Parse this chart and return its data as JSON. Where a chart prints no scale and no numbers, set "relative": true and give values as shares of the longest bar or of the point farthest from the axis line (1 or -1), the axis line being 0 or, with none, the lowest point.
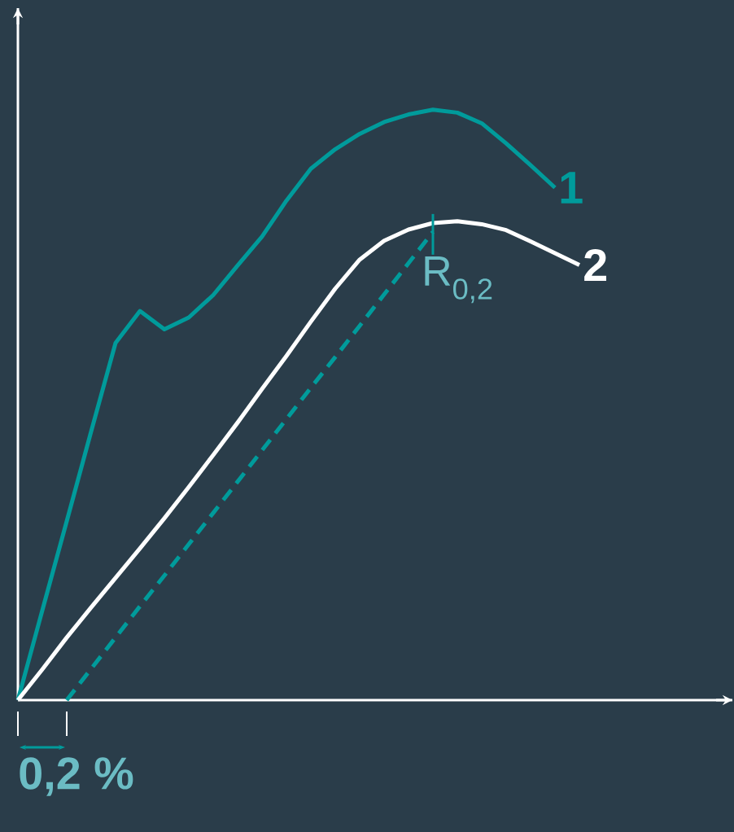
{
  "chart_data": {
    "type": "line",
    "relative": true,
    "categories": [
      null,
      null,
      null,
      null,
      null,
      null,
      null,
      null,
      null,
      null,
      null,
      null,
      null,
      null,
      null,
      null,
      null,
      null,
      null,
      null,
      null,
      null,
      null,
      null
    ],
    "series": [
      {
        "name": "1",
        "color": "#009b9b",
        "values": [
          0,
          0.152,
          0.303,
          0.455,
          0.605,
          0.659,
          0.628,
          0.648,
          0.686,
          0.736,
          0.785,
          0.846,
          0.9,
          0.933,
          0.959,
          0.979,
          0.992,
          1.0,
          0.995,
          0.977,
          0.943,
          0.906,
          0.868,
          null
        ]
      },
      {
        "name": "2",
        "color": "#ffffff",
        "values": [
          0,
          0.052,
          0.106,
          0.157,
          0.207,
          0.257,
          0.308,
          0.361,
          0.415,
          0.47,
          0.527,
          0.583,
          0.641,
          0.697,
          0.746,
          0.778,
          0.797,
          0.808,
          0.811,
          0.806,
          0.796,
          0.777,
          0.757,
          0.737
        ]
      },
      {
        "color": "#009b9b",
        "line_style": "dashed",
        "values": [
          null,
          null,
          0,
          0.053,
          0.106,
          0.159,
          0.211,
          0.264,
          0.317,
          0.37,
          0.423,
          0.476,
          0.529,
          0.581,
          0.634,
          0.687,
          0.74,
          0.793,
          null,
          null,
          null,
          null,
          null,
          null
        ]
      }
    ],
    "annotations": [
      "R$_{0,2}$",
      "0,2 %"
    ]
  }
}
